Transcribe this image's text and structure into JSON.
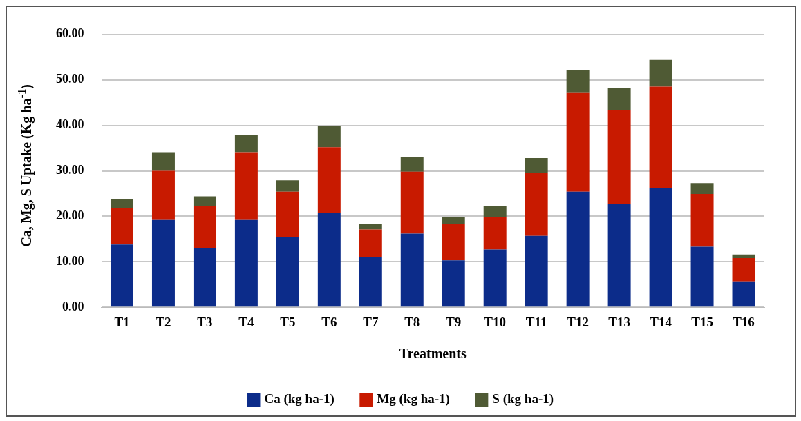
{
  "chart_data": {
    "type": "bar",
    "stacked": true,
    "xlabel": "Treatments",
    "ylabel": "Ca, Mg, S Uptake (Kg ha$^{-1}$)",
    "categories": [
      "T1",
      "T2",
      "T3",
      "T4",
      "T5",
      "T6",
      "T7",
      "T8",
      "T9",
      "T10",
      "T11",
      "T12",
      "T13",
      "T14",
      "T15",
      "T16"
    ],
    "series": [
      {
        "name": "Ca (kg ha-1)",
        "color": "#0c2c8a",
        "values": [
          13.8,
          19.2,
          13.0,
          19.2,
          15.4,
          20.8,
          11.1,
          16.2,
          10.3,
          12.7,
          15.7,
          25.4,
          22.7,
          26.3,
          13.3,
          5.7
        ]
      },
      {
        "name": "Mg (kg ha-1)",
        "color": "#c81a00",
        "values": [
          8.1,
          10.8,
          9.2,
          14.9,
          10.0,
          14.4,
          6.0,
          13.6,
          8.1,
          7.1,
          13.8,
          21.7,
          20.6,
          22.2,
          11.6,
          5.1
        ]
      },
      {
        "name": "S (kg ha-1)",
        "color": "#4f5a34",
        "values": [
          1.9,
          4.1,
          2.2,
          3.8,
          2.5,
          4.6,
          1.3,
          3.2,
          1.4,
          2.4,
          3.3,
          5.1,
          4.9,
          5.9,
          2.4,
          0.8
        ]
      }
    ],
    "ylim": [
      0,
      60
    ],
    "yticks": [
      {
        "value": 0,
        "label": "0.00"
      },
      {
        "value": 10,
        "label": "10.00"
      },
      {
        "value": 20,
        "label": "20.00"
      },
      {
        "value": 30,
        "label": "30.00"
      },
      {
        "value": 40,
        "label": "40.00"
      },
      {
        "value": 50,
        "label": "50.00"
      },
      {
        "value": 60,
        "label": "60.00"
      }
    ],
    "grid": "y",
    "legend": "bottom"
  }
}
